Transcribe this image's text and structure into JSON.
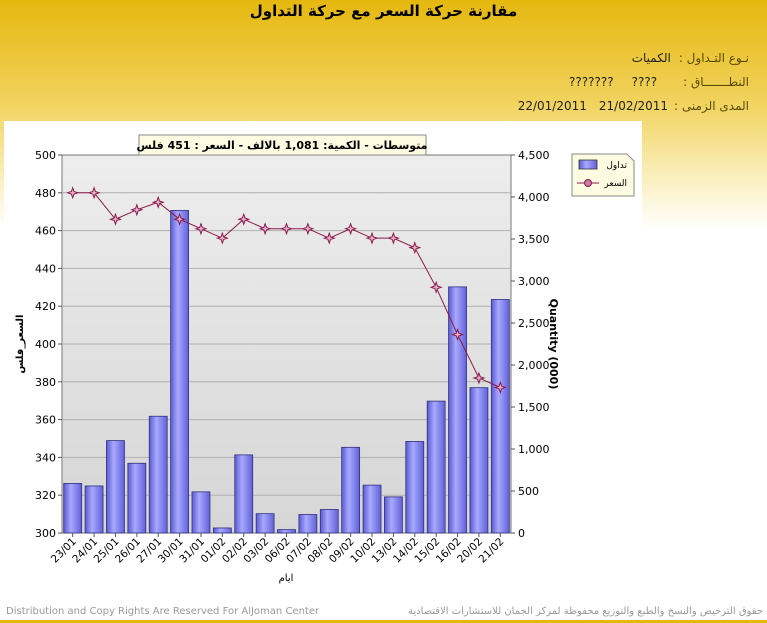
{
  "page": {
    "title": "مقارنة حركة السعر مع حركة التداول",
    "info": {
      "trading_type_label": "نـوع التـداول :",
      "trading_type_value": "الكميات",
      "sector_label": "النطـــــــاق :",
      "sector_value": "????",
      "sector_extra": "???????",
      "period_label": "المدى الزمنى :",
      "period_from": "22/01/2011",
      "period_to": "21/02/2011"
    },
    "footer_left": "Distribution and Copy Rights Are Reserved For AlJoman Center",
    "footer_right": "حقوق الترخيص والنسخ والطبع والتوزيع محفوظة لمركز الجمان للاستشارات الاقتصادية"
  },
  "chart_data": {
    "type": "bar",
    "title": "متوسطات - الكمية: 1,081 بالالف  - السعر : 451 فلس",
    "xlabel": "ايام",
    "ylabel_left": "السعر_فلس",
    "ylabel_right": "Quantity (000)",
    "categories": [
      "23/01",
      "24/01",
      "25/01",
      "26/01",
      "27/01",
      "30/01",
      "31/01",
      "01/02",
      "02/02",
      "03/02",
      "06/02",
      "07/02",
      "08/02",
      "09/02",
      "10/02",
      "13/02",
      "14/02",
      "15/02",
      "16/02",
      "20/02",
      "21/02"
    ],
    "left_axis": {
      "min": 300,
      "max": 500,
      "ticks": [
        300,
        320,
        340,
        360,
        380,
        400,
        420,
        440,
        460,
        480,
        500
      ]
    },
    "right_axis": {
      "min": 0,
      "max": 4500,
      "ticks": [
        "0",
        "500",
        "1,000",
        "1,500",
        "2,000",
        "2,500",
        "3,000",
        "3,500",
        "4,000",
        "4,500"
      ]
    },
    "series": [
      {
        "name": "تداول",
        "kind": "bar",
        "axis": "right",
        "color": "#8080ee",
        "values": [
          590,
          560,
          1100,
          830,
          1390,
          3840,
          490,
          60,
          930,
          230,
          40,
          220,
          280,
          1020,
          570,
          430,
          1090,
          1570,
          2930,
          1730,
          2780
        ]
      },
      {
        "name": "السعر",
        "kind": "line",
        "axis": "left",
        "color": "#8b1a4a",
        "values": [
          480,
          480,
          466,
          471,
          475,
          466,
          461,
          456,
          466,
          461,
          461,
          461,
          456,
          461,
          456,
          456,
          451,
          430,
          405,
          382,
          377
        ]
      }
    ],
    "legend": "top-right",
    "grid": true
  }
}
